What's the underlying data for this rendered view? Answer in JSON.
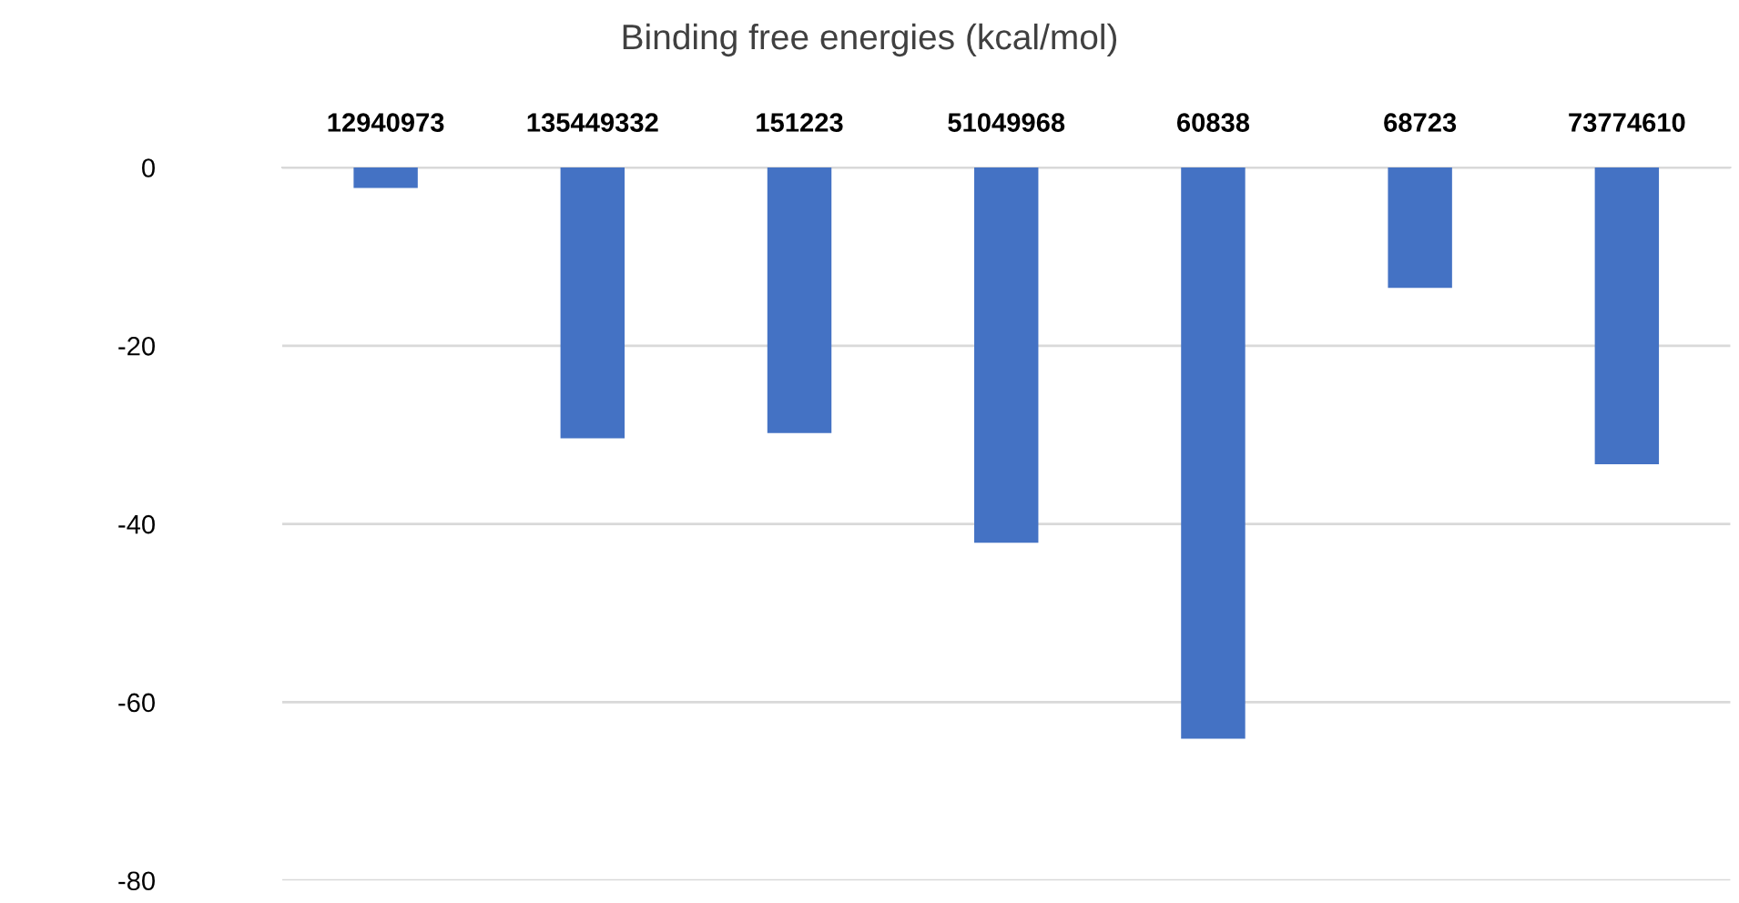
{
  "chart_data": {
    "type": "bar",
    "title": "Binding free energies (kcal/mol)",
    "categories": [
      "12940973",
      "135449332",
      "151223",
      "51049968",
      "60838",
      "68723",
      "73774610"
    ],
    "values": [
      -2.3,
      -30.4,
      -29.8,
      -42.1,
      -64.1,
      -13.5,
      -33.3
    ],
    "color": "#4472c4",
    "ylim": [
      -80,
      0
    ],
    "yticks": [
      -80,
      -60,
      -40,
      -20,
      0
    ],
    "grid": "y"
  }
}
